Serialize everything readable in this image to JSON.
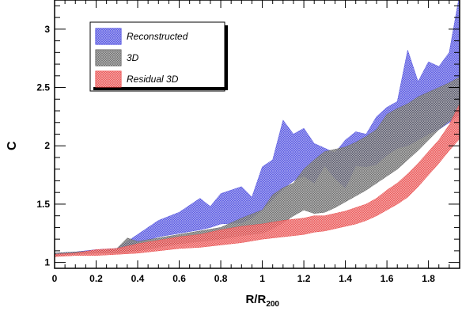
{
  "chart_data": {
    "type": "area",
    "xlabel": "R/R",
    "xlabel_sub": "200",
    "ylabel": "C",
    "xlim": [
      0,
      1.95
    ],
    "ylim": [
      0.95,
      3.25
    ],
    "xticks": [
      0,
      0.2,
      0.4,
      0.6,
      0.8,
      1,
      1.2,
      1.4,
      1.6,
      1.8
    ],
    "xtick_labels": [
      "0",
      "0.2",
      "0.4",
      "0.6",
      "0.8",
      "1",
      "1.2",
      "1.4",
      "1.6",
      "1.8"
    ],
    "yticks": [
      1,
      1.5,
      2,
      2.5,
      3
    ],
    "ytick_labels": [
      "1",
      "1.5",
      "2",
      "2.5",
      "3"
    ],
    "grid": false,
    "legend_position": "top-left",
    "series": [
      {
        "name": "Reconstructed",
        "color": "#3a3adc",
        "x": [
          0.0,
          0.1,
          0.2,
          0.3,
          0.35,
          0.4,
          0.5,
          0.6,
          0.7,
          0.75,
          0.8,
          0.9,
          0.95,
          1.0,
          1.05,
          1.1,
          1.15,
          1.2,
          1.25,
          1.3,
          1.35,
          1.4,
          1.45,
          1.5,
          1.55,
          1.6,
          1.65,
          1.7,
          1.75,
          1.8,
          1.85,
          1.9,
          1.95
        ],
        "upper": [
          1.08,
          1.09,
          1.11,
          1.12,
          1.18,
          1.24,
          1.36,
          1.43,
          1.55,
          1.48,
          1.59,
          1.65,
          1.56,
          1.82,
          1.88,
          2.22,
          2.1,
          2.15,
          2.02,
          1.98,
          1.94,
          2.05,
          2.12,
          2.1,
          2.25,
          2.33,
          2.38,
          2.82,
          2.55,
          2.72,
          2.68,
          2.8,
          3.3
        ],
        "lower": [
          1.06,
          1.08,
          1.09,
          1.1,
          1.13,
          1.17,
          1.22,
          1.25,
          1.28,
          1.3,
          1.33,
          1.34,
          1.38,
          1.45,
          1.54,
          1.63,
          1.7,
          1.74,
          1.68,
          1.83,
          1.72,
          1.64,
          1.83,
          1.82,
          1.84,
          1.92,
          1.98,
          2.0,
          2.05,
          2.1,
          2.14,
          2.2,
          2.27
        ]
      },
      {
        "name": "3D",
        "color": "#555555",
        "x": [
          0.0,
          0.1,
          0.2,
          0.3,
          0.35,
          0.4,
          0.5,
          0.6,
          0.7,
          0.8,
          0.9,
          1.0,
          1.05,
          1.1,
          1.15,
          1.2,
          1.25,
          1.3,
          1.35,
          1.4,
          1.45,
          1.5,
          1.55,
          1.6,
          1.65,
          1.7,
          1.75,
          1.8,
          1.85,
          1.9,
          1.95
        ],
        "upper": [
          1.08,
          1.09,
          1.1,
          1.12,
          1.21,
          1.18,
          1.21,
          1.24,
          1.27,
          1.3,
          1.38,
          1.45,
          1.58,
          1.64,
          1.68,
          1.8,
          1.88,
          1.95,
          1.97,
          1.99,
          2.03,
          2.08,
          2.14,
          2.27,
          2.32,
          2.36,
          2.42,
          2.46,
          2.5,
          2.54,
          2.59
        ],
        "lower": [
          1.06,
          1.07,
          1.08,
          1.08,
          1.09,
          1.1,
          1.13,
          1.16,
          1.18,
          1.2,
          1.23,
          1.25,
          1.29,
          1.34,
          1.4,
          1.45,
          1.42,
          1.43,
          1.47,
          1.52,
          1.57,
          1.62,
          1.68,
          1.74,
          1.8,
          1.88,
          1.96,
          2.05,
          2.14,
          2.21,
          2.28
        ]
      },
      {
        "name": "Residual 3D",
        "color": "#e83b3b",
        "x": [
          0.0,
          0.1,
          0.2,
          0.3,
          0.4,
          0.5,
          0.6,
          0.7,
          0.8,
          0.9,
          1.0,
          1.1,
          1.2,
          1.25,
          1.3,
          1.35,
          1.4,
          1.45,
          1.5,
          1.55,
          1.6,
          1.65,
          1.7,
          1.75,
          1.8,
          1.85,
          1.9,
          1.95
        ],
        "upper": [
          1.07,
          1.08,
          1.11,
          1.12,
          1.16,
          1.19,
          1.22,
          1.24,
          1.28,
          1.31,
          1.33,
          1.36,
          1.38,
          1.4,
          1.4,
          1.42,
          1.44,
          1.47,
          1.5,
          1.55,
          1.62,
          1.68,
          1.76,
          1.85,
          1.95,
          2.05,
          2.18,
          2.36
        ],
        "lower": [
          1.05,
          1.06,
          1.06,
          1.07,
          1.08,
          1.1,
          1.12,
          1.13,
          1.15,
          1.17,
          1.2,
          1.22,
          1.24,
          1.26,
          1.27,
          1.29,
          1.31,
          1.33,
          1.36,
          1.4,
          1.45,
          1.5,
          1.56,
          1.65,
          1.75,
          1.85,
          1.96,
          2.06
        ]
      }
    ]
  }
}
